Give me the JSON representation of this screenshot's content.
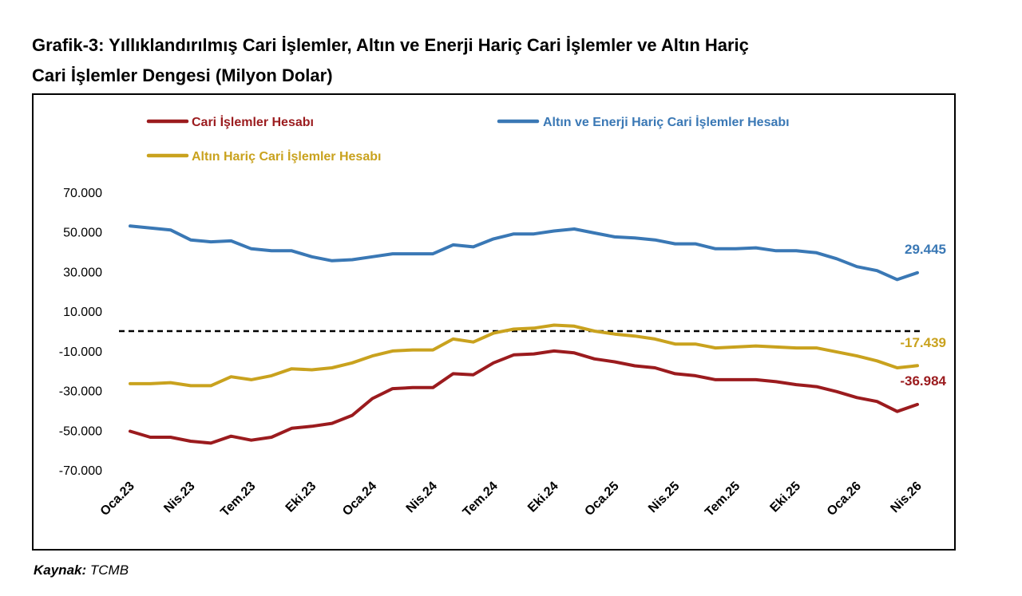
{
  "title_line1": "Grafik-3: Yıllıklandırılmış Cari İşlemler, Altın ve Enerji Hariç Cari İşlemler ve Altın Hariç",
  "title_line2": "Cari İşlemler Dengesi (Milyon Dolar)",
  "source_label": "Kaynak:",
  "source_value": "TCMB",
  "colors": {
    "red": "#9B1B1E",
    "blue": "#3A78B5",
    "gold": "#C9A21E",
    "zero_line": "#000000"
  },
  "chart_data": {
    "type": "line",
    "title": "",
    "xlabel": "",
    "ylabel": "",
    "ylim": [
      -70000,
      70000
    ],
    "yticks": [
      70000,
      50000,
      30000,
      10000,
      -10000,
      -30000,
      -50000,
      -70000
    ],
    "ytick_labels": [
      "70.000",
      "50.000",
      "30.000",
      "10.000",
      "-10.000",
      "-30.000",
      "-50.000",
      "-70.000"
    ],
    "x": [
      "Oca.23",
      "Şub.23",
      "Mar.23",
      "Nis.23",
      "May.23",
      "Haz.23",
      "Tem.23",
      "Ağu.23",
      "Eyl.23",
      "Eki.23",
      "Kas.23",
      "Ara.23",
      "Oca.24",
      "Şub.24",
      "Mar.24",
      "Nis.24",
      "May.24",
      "Haz.24",
      "Tem.24",
      "Ağu.24",
      "Eyl.24",
      "Eki.24",
      "Kas.24",
      "Ara.24",
      "Oca.25",
      "Şub.25",
      "Mar.25",
      "Nis.25",
      "May.25",
      "Haz.25",
      "Tem.25",
      "Ağu.25",
      "Eyl.25",
      "Eki.25",
      "Kas.25",
      "Ara.25",
      "Oca.26",
      "Şub.26",
      "Mar.26",
      "Nis.26"
    ],
    "xtick_labels": [
      "Oca.23",
      "Nis.23",
      "Tem.23",
      "Eki.23",
      "Oca.24",
      "Nis.24",
      "Tem.24",
      "Eki.24",
      "Oca.25",
      "Nis.25",
      "Tem.25",
      "Eki.25",
      "Oca.26",
      "Nis.26"
    ],
    "reference_line": 0,
    "legend_position": "top",
    "series": [
      {
        "name": "Cari İşlemler Hesabı",
        "color": "#9B1B1E",
        "values": [
          -50500,
          -53500,
          -53500,
          -55500,
          -56500,
          -53000,
          -55000,
          -53500,
          -49000,
          -48000,
          -46500,
          -42500,
          -34000,
          -29000,
          -28500,
          -28500,
          -21500,
          -22000,
          -16000,
          -12000,
          -11500,
          -10000,
          -11000,
          -14000,
          -15500,
          -17500,
          -18500,
          -21500,
          -22500,
          -24500,
          -24500,
          -24500,
          -25500,
          -27000,
          -28000,
          -30500,
          -33500,
          -35500,
          -40500,
          -36984
        ],
        "end_label": "-36.984"
      },
      {
        "name": "Altın ve Enerji Hariç Cari İşlemler Hesabı",
        "color": "#3A78B5",
        "values": [
          53000,
          52000,
          51000,
          46000,
          45000,
          45500,
          41500,
          40500,
          40500,
          37500,
          35500,
          36000,
          37500,
          39000,
          39000,
          39000,
          43500,
          42500,
          46500,
          49000,
          49000,
          50500,
          51500,
          49500,
          47500,
          47000,
          46000,
          44000,
          44000,
          41500,
          41500,
          42000,
          40500,
          40500,
          39500,
          36500,
          32500,
          30500,
          26000,
          29445
        ],
        "end_label": "29.445"
      },
      {
        "name": "Altın Hariç Cari İşlemler Hesabı",
        "color": "#C9A21E",
        "values": [
          -26500,
          -26500,
          -26000,
          -27500,
          -27500,
          -23000,
          -24500,
          -22500,
          -19000,
          -19500,
          -18500,
          -16000,
          -12500,
          -10000,
          -9500,
          -9500,
          -4000,
          -5500,
          -1000,
          1000,
          1500,
          3000,
          2500,
          0,
          -1500,
          -2500,
          -4000,
          -6500,
          -6500,
          -8500,
          -8000,
          -7500,
          -8000,
          -8500,
          -8500,
          -10500,
          -12500,
          -15000,
          -18500,
          -17439
        ],
        "end_label": "-17.439"
      }
    ]
  }
}
